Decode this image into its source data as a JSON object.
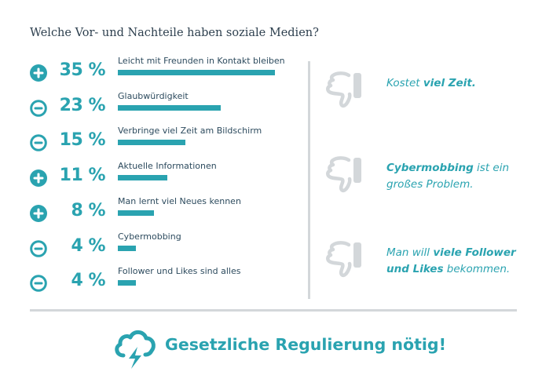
{
  "title": "Welche Vor- und Nachteile haben soziale Medien?",
  "colors": {
    "accent": "#2aa3b0",
    "text": "#2d4b5e",
    "gray": "#d3d7da"
  },
  "chart_data": {
    "type": "bar",
    "orientation": "horizontal",
    "title": "Welche Vor- und Nachteile haben soziale Medien?",
    "categories": [
      "Leicht mit Freunden in Kontakt bleiben",
      "Glaubwürdigkeit",
      "Verbringe viel Zeit am Bildschirm",
      "Aktuelle Informationen",
      "Man lernt viel Neues kennen",
      "Cybermobbing",
      "Follower und Likes sind alles"
    ],
    "values": [
      35,
      23,
      15,
      11,
      8,
      4,
      4
    ],
    "value_labels": [
      "35 %",
      "23 %",
      "15 %",
      "11 %",
      "8 %",
      "4 %",
      "4 %"
    ],
    "signs": [
      "plus",
      "minus",
      "minus",
      "plus",
      "plus",
      "minus",
      "minus"
    ],
    "grid": false
  },
  "cons": [
    {
      "pre": "Kostet ",
      "bold": "viel Zeit.",
      "post": ""
    },
    {
      "pre": "",
      "bold": "Cybermobbing",
      "post": " ist ein großes Problem."
    },
    {
      "pre": "Man will ",
      "bold": "viele Follower und Likes",
      "post": " bekommen."
    }
  ],
  "footer": {
    "icon": "cloud-lightning-icon",
    "text": "Gesetzliche Regulierung nötig!"
  }
}
